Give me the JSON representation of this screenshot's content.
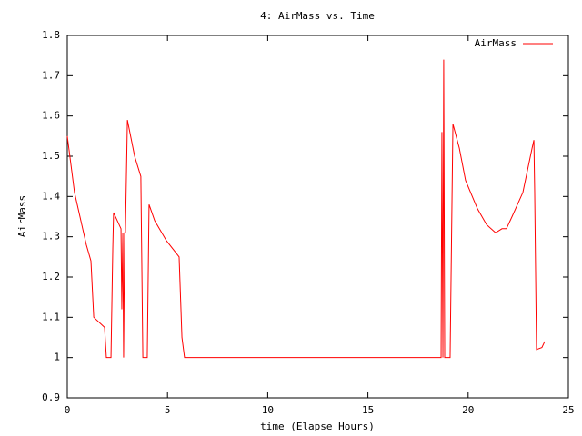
{
  "chart_data": {
    "type": "line",
    "title": "4: AirMass vs. Time",
    "x_label": "time (Elapse Hours)",
    "y_label": "AirMass",
    "x": [
      0,
      0.36,
      0.95,
      1.18,
      1.32,
      1.86,
      1.95,
      2.18,
      2.27,
      2.31,
      2.68,
      2.72,
      2.77,
      2.81,
      2.86,
      2.9,
      3.0,
      3.36,
      3.67,
      3.77,
      3.99,
      4.08,
      4.36,
      4.95,
      5.58,
      5.72,
      5.85,
      18.65,
      18.69,
      18.74,
      18.78,
      18.83,
      19.1,
      19.24,
      19.56,
      19.87,
      20.46,
      20.92,
      21.37,
      21.69,
      21.91,
      22.19,
      22.73,
      23.19,
      23.28,
      23.32,
      23.41,
      23.68,
      23.82
    ],
    "series": [
      {
        "name": "AirMass",
        "color": "#ff0000",
        "values": [
          1.55,
          1.41,
          1.28,
          1.24,
          1.1,
          1.075,
          1.0,
          1.0,
          1.27,
          1.36,
          1.32,
          1.12,
          1.31,
          1.0,
          1.31,
          1.31,
          1.59,
          1.5,
          1.45,
          1.0,
          1.0,
          1.38,
          1.34,
          1.29,
          1.25,
          1.05,
          1.0,
          1.0,
          1.56,
          1.0,
          1.74,
          1.0,
          1.0,
          1.58,
          1.52,
          1.44,
          1.37,
          1.33,
          1.31,
          1.32,
          1.32,
          1.35,
          1.41,
          1.52,
          1.54,
          1.41,
          1.02,
          1.025,
          1.04
        ]
      }
    ],
    "xlim": [
      0,
      25
    ],
    "xticks": [
      0,
      5,
      10,
      15,
      20,
      25
    ],
    "ylim": [
      0.9,
      1.8
    ],
    "yticks": [
      0.9,
      1,
      1.1,
      1.2,
      1.3,
      1.4,
      1.5,
      1.6,
      1.7,
      1.8
    ],
    "legend": "top-right",
    "grid": false
  }
}
